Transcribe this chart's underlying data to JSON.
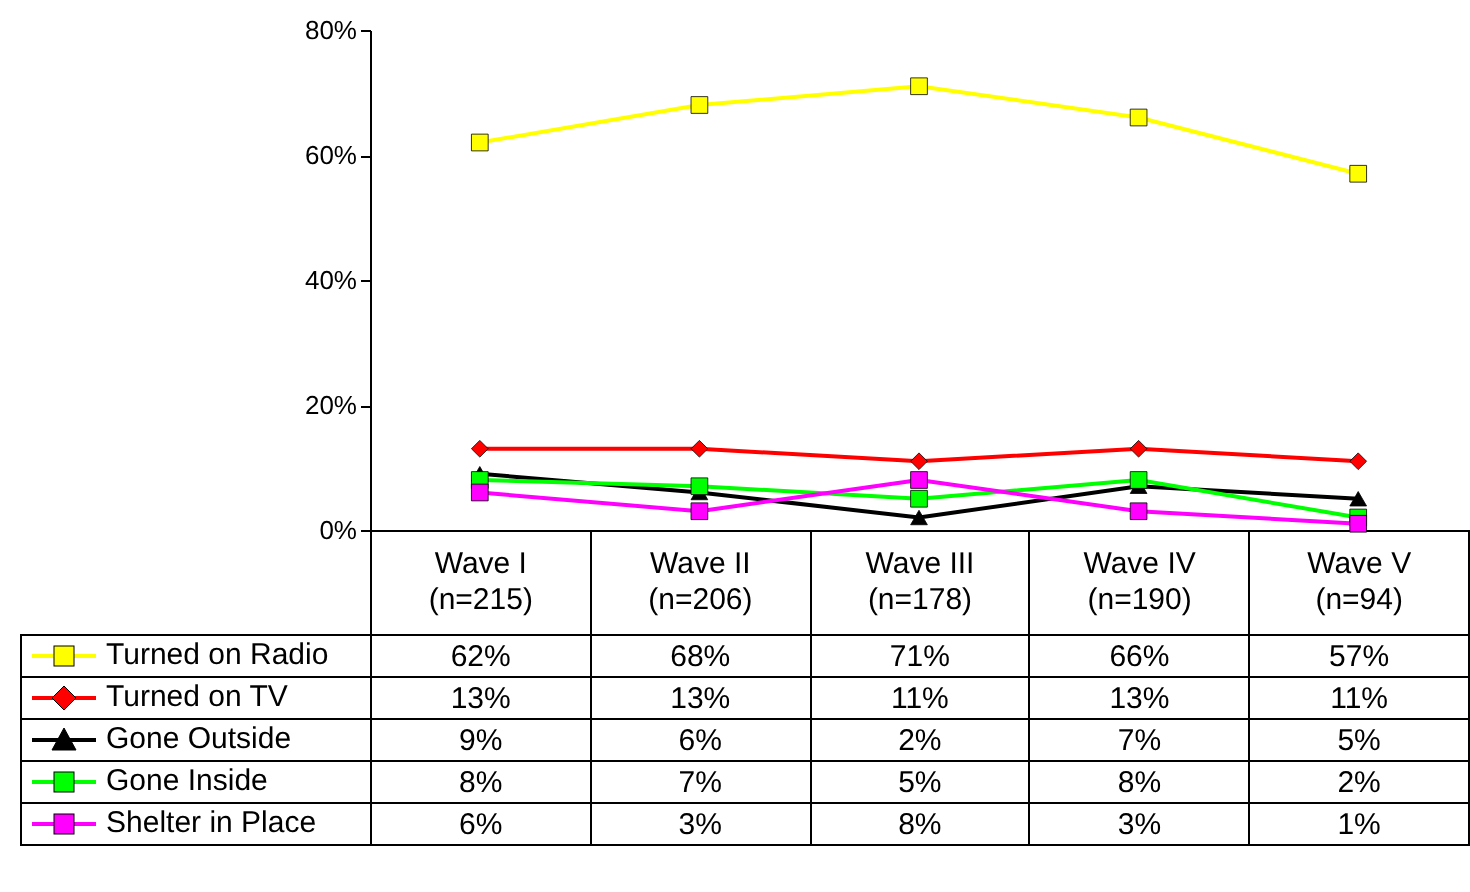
{
  "chart_data": {
    "type": "line",
    "categories": [
      "Wave I\n(n=215)",
      "Wave II\n(n=206)",
      "Wave III\n(n=178)",
      "Wave IV\n(n=190)",
      "Wave V\n(n=94)"
    ],
    "ylim": [
      0,
      80
    ],
    "yticks": [
      {
        "value": 0,
        "label": "0%"
      },
      {
        "value": 20,
        "label": "20%"
      },
      {
        "value": 40,
        "label": "40%"
      },
      {
        "value": 60,
        "label": "60%"
      },
      {
        "value": 80,
        "label": "80%"
      }
    ],
    "legend": "bottom",
    "series": [
      {
        "name": "Turned on Radio",
        "color": "#ffff00",
        "marker": "square",
        "values": [
          62,
          68,
          71,
          66,
          57
        ],
        "value_labels": [
          "62%",
          "68%",
          "71%",
          "66%",
          "57%"
        ]
      },
      {
        "name": "Turned on TV",
        "color": "#ff0000",
        "marker": "diamond",
        "values": [
          13,
          13,
          11,
          13,
          11
        ],
        "value_labels": [
          "13%",
          "13%",
          "11%",
          "13%",
          "11%"
        ]
      },
      {
        "name": "Gone Outside",
        "color": "#000000",
        "marker": "triangle",
        "values": [
          9,
          6,
          2,
          7,
          5
        ],
        "value_labels": [
          "9%",
          "6%",
          "2%",
          "7%",
          "5%"
        ]
      },
      {
        "name": "Gone Inside",
        "color": "#00ff00",
        "marker": "square",
        "values": [
          8,
          7,
          5,
          8,
          2
        ],
        "value_labels": [
          "8%",
          "7%",
          "5%",
          "8%",
          "2%"
        ]
      },
      {
        "name": "Shelter in Place",
        "color": "#ff00ff",
        "marker": "square",
        "values": [
          6,
          3,
          8,
          3,
          1
        ],
        "value_labels": [
          "6%",
          "3%",
          "8%",
          "3%",
          "1%"
        ]
      }
    ]
  }
}
